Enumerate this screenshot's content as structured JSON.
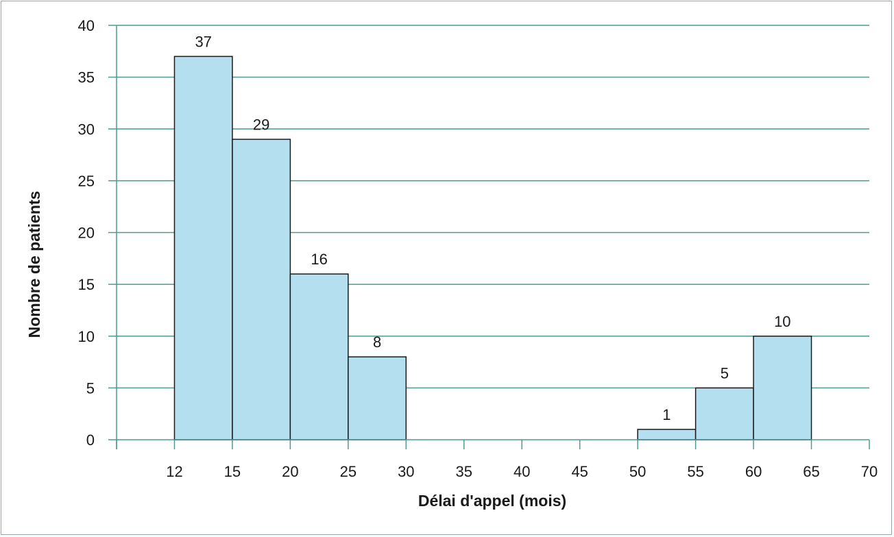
{
  "chart_data": {
    "type": "bar",
    "title": "",
    "xlabel": "Délai d'appel (mois)",
    "ylabel": "Nombre de patients",
    "ylim": [
      0,
      40
    ],
    "y_ticks": [
      "0",
      "5",
      "10",
      "15",
      "20",
      "25",
      "30",
      "35",
      "40"
    ],
    "x_ticks": [
      "12",
      "15",
      "20",
      "25",
      "30",
      "35",
      "40",
      "45",
      "50",
      "55",
      "60",
      "65",
      "70"
    ],
    "grid": true,
    "bins": [
      {
        "from": 12,
        "to": 15,
        "value": 37
      },
      {
        "from": 15,
        "to": 20,
        "value": 29
      },
      {
        "from": 20,
        "to": 25,
        "value": 16
      },
      {
        "from": 25,
        "to": 30,
        "value": 8
      },
      {
        "from": 50,
        "to": 55,
        "value": 1
      },
      {
        "from": 55,
        "to": 60,
        "value": 5
      },
      {
        "from": 60,
        "to": 65,
        "value": 10
      }
    ],
    "data_labels": [
      "37",
      "29",
      "16",
      "8",
      "1",
      "5",
      "10"
    ],
    "colors": {
      "bar_fill": "#b3dfef",
      "bar_stroke": "#1a1a1a",
      "grid": "#4f9a8f",
      "axis": "#4f9a8f"
    }
  }
}
